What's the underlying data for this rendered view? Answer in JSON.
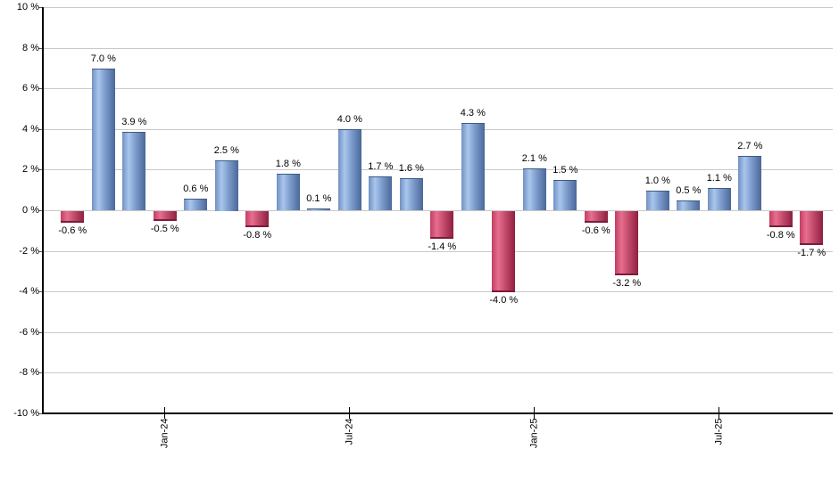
{
  "chart_data": {
    "type": "bar",
    "title": "",
    "xlabel": "",
    "ylabel": "",
    "unit": "%",
    "ylim": [
      -10,
      10
    ],
    "grid": true,
    "bars": [
      {
        "value": -0.6,
        "label": "-0.6 %"
      },
      {
        "value": 7.0,
        "label": "7.0 %"
      },
      {
        "value": 3.9,
        "label": "3.9 %"
      },
      {
        "value": -0.5,
        "label": "-0.5 %"
      },
      {
        "value": 0.6,
        "label": "0.6 %"
      },
      {
        "value": 2.5,
        "label": "2.5 %"
      },
      {
        "value": -0.8,
        "label": "-0.8 %"
      },
      {
        "value": 1.8,
        "label": "1.8 %"
      },
      {
        "value": 0.1,
        "label": "0.1 %"
      },
      {
        "value": 4.0,
        "label": "4.0 %"
      },
      {
        "value": 1.7,
        "label": "1.7 %"
      },
      {
        "value": 1.6,
        "label": "1.6 %"
      },
      {
        "value": -1.4,
        "label": "-1.4 %"
      },
      {
        "value": 4.3,
        "label": "4.3 %"
      },
      {
        "value": -4.0,
        "label": "-4.0 %"
      },
      {
        "value": 2.1,
        "label": "2.1 %"
      },
      {
        "value": 1.5,
        "label": "1.5 %"
      },
      {
        "value": -0.6,
        "label": "-0.6 %"
      },
      {
        "value": -3.2,
        "label": "-3.2 %"
      },
      {
        "value": 1.0,
        "label": "1.0 %"
      },
      {
        "value": 0.5,
        "label": "0.5 %"
      },
      {
        "value": 1.1,
        "label": "1.1 %"
      },
      {
        "value": 2.7,
        "label": "2.7 %"
      },
      {
        "value": -0.8,
        "label": "-0.8 %"
      },
      {
        "value": -1.7,
        "label": "-1.7 %"
      }
    ],
    "x_ticks": [
      {
        "label": "Jan-24",
        "bar_index": 3
      },
      {
        "label": "Jul-24",
        "bar_index": 9
      },
      {
        "label": "Jan-25",
        "bar_index": 15
      },
      {
        "label": "Jul-25",
        "bar_index": 21
      }
    ],
    "y_ticks": [
      {
        "value": 10,
        "label": "10 %"
      },
      {
        "value": 8,
        "label": "8 %"
      },
      {
        "value": 6,
        "label": "6 %"
      },
      {
        "value": 4,
        "label": "4 %"
      },
      {
        "value": 2,
        "label": "2 %"
      },
      {
        "value": 0,
        "label": "0 %"
      },
      {
        "value": -2,
        "label": "-2 %"
      },
      {
        "value": -4,
        "label": "-4 %"
      },
      {
        "value": -6,
        "label": "-6 %"
      },
      {
        "value": -8,
        "label": "-8 %"
      },
      {
        "value": -10,
        "label": "-10 %"
      }
    ],
    "colors": {
      "positive_bar_gradient": [
        "#7191c1",
        "#a9c6ec",
        "#7f9fce",
        "#4a689a"
      ],
      "negative_bar_gradient": [
        "#c23e62",
        "#e76e90",
        "#c74e6e",
        "#8e2040"
      ],
      "gridline": "#c9c9c9",
      "axis": "#000000",
      "label_text": "#000000",
      "background": "#ffffff"
    }
  }
}
